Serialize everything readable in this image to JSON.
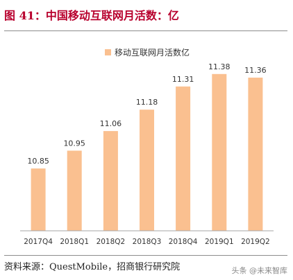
{
  "title": "图 41：中国移动互联网月活数：亿",
  "source": "资料来源：QuestMobile，招商银行研究院",
  "watermark": "头条 @未来智库",
  "colors": {
    "title": "#b8002d",
    "bar": "#fac090"
  },
  "chart_data": {
    "type": "bar",
    "categories": [
      "2017Q4",
      "2018Q1",
      "2018Q2",
      "2018Q3",
      "2018Q4",
      "2019Q1",
      "2019Q2"
    ],
    "series": [
      {
        "name": "移动互联网月活数亿",
        "values": [
          10.85,
          10.95,
          11.06,
          11.18,
          11.31,
          11.38,
          11.36
        ]
      }
    ],
    "ylim": [
      10.5,
      11.5
    ],
    "data_labels": true,
    "grid": false,
    "legend_position": "top-center"
  }
}
